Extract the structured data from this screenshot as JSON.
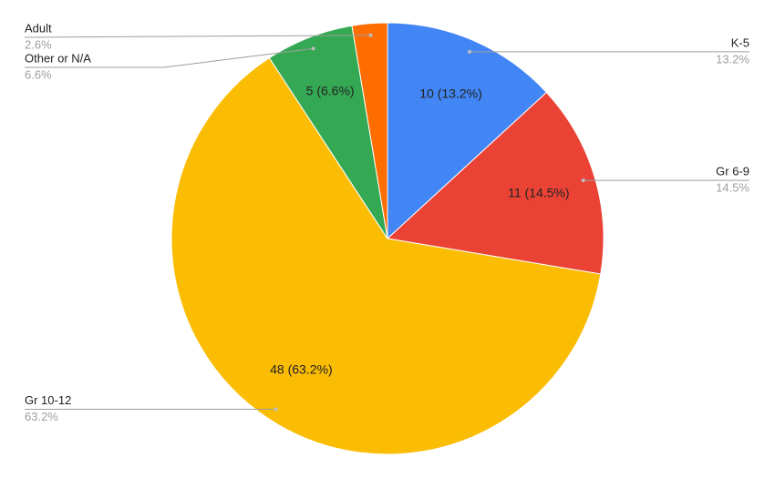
{
  "chart_data": {
    "type": "pie",
    "categories": [
      "K-5",
      "Gr 6-9",
      "Gr 10-12",
      "Other or N/A",
      "Adult"
    ],
    "values": [
      10,
      11,
      48,
      5,
      2
    ],
    "value_labels": [
      "10 (13.2%)",
      "11 (14.5%)",
      "48 (63.2%)",
      "5 (6.6%)",
      null
    ],
    "percent_labels": [
      "13.2%",
      "14.5%",
      "63.2%",
      "6.6%",
      "2.6%"
    ],
    "colors": [
      "#4285f4",
      "#ea4335",
      "#fbbc04",
      "#34a853",
      "#ff6d01"
    ]
  }
}
